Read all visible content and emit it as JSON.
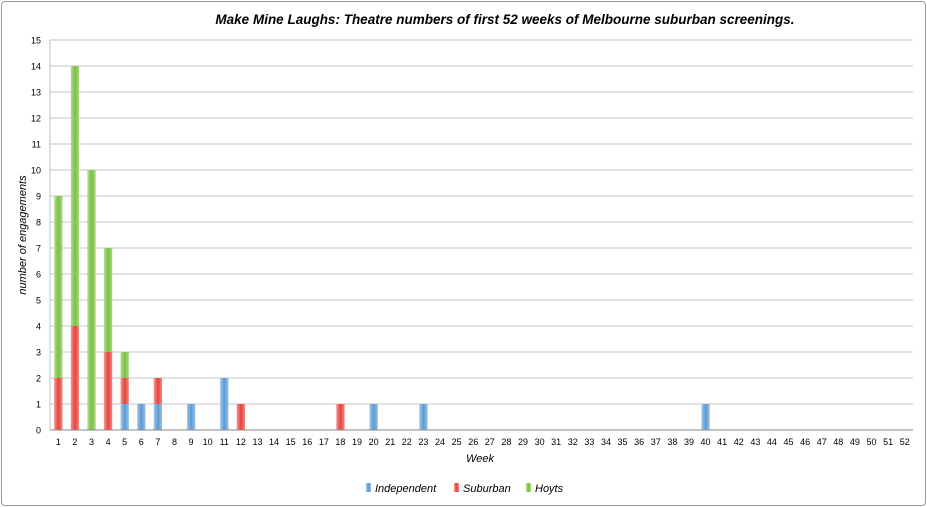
{
  "chart_data": {
    "type": "bar",
    "stacked": true,
    "title": "Make Mine Laughs: Theatre numbers of first 52 weeks of Melbourne suburban screenings.",
    "xlabel": "Week",
    "ylabel": "number of engagements",
    "ylim": [
      0,
      15
    ],
    "yticks": [
      "0",
      "1",
      "2",
      "3",
      "4",
      "5",
      "6",
      "7",
      "8",
      "9",
      "10",
      "11",
      "12",
      "13",
      "14",
      "15"
    ],
    "grid": true,
    "legend_position": "bottom-center",
    "categories": [
      "1",
      "2",
      "3",
      "4",
      "5",
      "6",
      "7",
      "8",
      "9",
      "10",
      "11",
      "12",
      "13",
      "14",
      "15",
      "16",
      "17",
      "18",
      "19",
      "20",
      "21",
      "22",
      "23",
      "24",
      "25",
      "26",
      "27",
      "28",
      "29",
      "30",
      "31",
      "32",
      "33",
      "34",
      "35",
      "36",
      "37",
      "38",
      "39",
      "40",
      "41",
      "42",
      "43",
      "44",
      "45",
      "46",
      "47",
      "48",
      "49",
      "50",
      "51",
      "52"
    ],
    "series": [
      {
        "name": "Independent",
        "color": "#5b9bd5",
        "values": [
          0,
          0,
          0,
          0,
          1,
          1,
          1,
          0,
          1,
          0,
          2,
          0,
          0,
          0,
          0,
          0,
          0,
          0,
          0,
          1,
          0,
          0,
          1,
          0,
          0,
          0,
          0,
          0,
          0,
          0,
          0,
          0,
          0,
          0,
          0,
          0,
          0,
          0,
          0,
          1,
          0,
          0,
          0,
          0,
          0,
          0,
          0,
          0,
          0,
          0,
          0,
          0
        ]
      },
      {
        "name": "Suburban",
        "color": "#e8433c",
        "values": [
          2,
          4,
          0,
          3,
          1,
          0,
          1,
          0,
          0,
          0,
          0,
          1,
          0,
          0,
          0,
          0,
          0,
          1,
          0,
          0,
          0,
          0,
          0,
          0,
          0,
          0,
          0,
          0,
          0,
          0,
          0,
          0,
          0,
          0,
          0,
          0,
          0,
          0,
          0,
          0,
          0,
          0,
          0,
          0,
          0,
          0,
          0,
          0,
          0,
          0,
          0,
          0
        ]
      },
      {
        "name": "Hoyts",
        "color": "#7ac143",
        "values": [
          7,
          10,
          10,
          4,
          1,
          0,
          0,
          0,
          0,
          0,
          0,
          0,
          0,
          0,
          0,
          0,
          0,
          0,
          0,
          0,
          0,
          0,
          0,
          0,
          0,
          0,
          0,
          0,
          0,
          0,
          0,
          0,
          0,
          0,
          0,
          0,
          0,
          0,
          0,
          0,
          0,
          0,
          0,
          0,
          0,
          0,
          0,
          0,
          0,
          0,
          0,
          0
        ]
      }
    ]
  }
}
